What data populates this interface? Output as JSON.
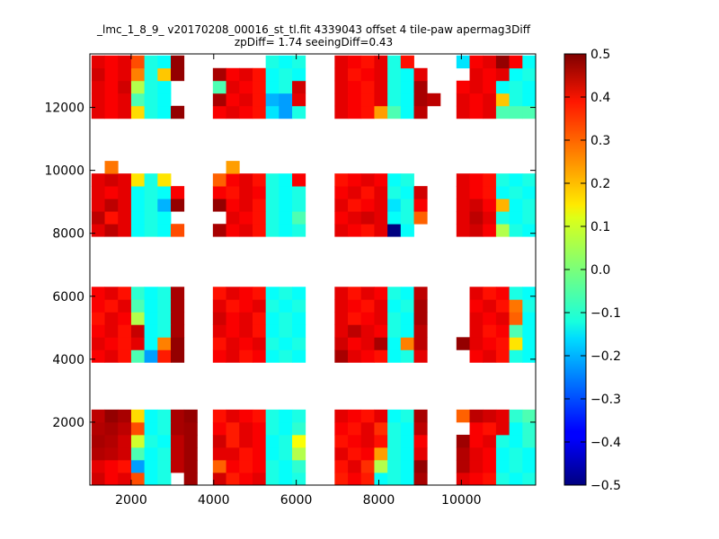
{
  "chart_data": {
    "type": "heatmap",
    "title": "_lmc_1_8_9_ v20170208_00016_st_tl.fit 4339043 offset 4 tile-paw apermag3Diff",
    "subtitle": "zpDiff= 1.74 seeingDiff=0.43",
    "xlabel": "",
    "ylabel": "",
    "xlim": [
      1000,
      11800
    ],
    "ylim": [
      0,
      13700
    ],
    "xticks": [
      "2000",
      "4000",
      "6000",
      "8000",
      "10000"
    ],
    "yticks": [
      "2000",
      "4000",
      "6000",
      "8000",
      "10000",
      "12000"
    ],
    "colorbar": {
      "colormap": "jet",
      "range": [
        -0.5,
        0.5
      ],
      "ticks": [
        "0.5",
        "0.4",
        "0.3",
        "0.2",
        "0.1",
        "0.0",
        "−0.1",
        "−0.2",
        "−0.3",
        "−0.4",
        "−0.5"
      ]
    },
    "grid": false,
    "cell_width": 320,
    "cell_height": 400,
    "column_x": [
      1040,
      1360,
      1680,
      2000,
      2320,
      2640,
      2960,
      3280,
      3980,
      4300,
      4620,
      4940,
      5260,
      5580,
      5900,
      6220,
      6930,
      7250,
      7570,
      7890,
      8210,
      8530,
      8850,
      9170,
      9880,
      10200,
      10520,
      10840,
      11160,
      11480
    ],
    "row_groups": [
      {
        "y": [
          0,
          400,
          800,
          1200,
          1600,
          2000
        ],
        "values": [
          [
            0.42,
            0.38,
            0.4,
            0.3,
            -0.12,
            -0.1,
            null,
            0.47,
            0.42,
            0.35,
            0.38,
            0.4,
            -0.1,
            -0.12,
            -0.1,
            null,
            0.35,
            0.38,
            0.35,
            -0.12,
            -0.1,
            -0.12,
            0.46,
            null,
            0.4,
            0.38,
            0.36,
            -0.1,
            -0.12,
            -0.1
          ],
          [
            0.4,
            0.38,
            0.36,
            -0.22,
            -0.12,
            -0.1,
            0.44,
            0.47,
            0.28,
            0.38,
            0.36,
            0.38,
            -0.1,
            -0.12,
            -0.08,
            null,
            0.36,
            0.4,
            0.33,
            0.05,
            -0.1,
            -0.12,
            0.48,
            null,
            0.45,
            0.4,
            0.38,
            -0.12,
            -0.1,
            -0.12
          ],
          [
            0.45,
            0.44,
            0.42,
            -0.05,
            -0.12,
            -0.1,
            0.44,
            0.47,
            0.4,
            0.4,
            0.36,
            0.38,
            -0.12,
            -0.1,
            0.05,
            null,
            0.4,
            0.36,
            0.38,
            0.22,
            -0.1,
            -0.12,
            0.4,
            null,
            0.45,
            0.4,
            0.38,
            -0.12,
            -0.1,
            -0.12
          ],
          [
            0.46,
            0.45,
            0.42,
            0.08,
            -0.1,
            -0.12,
            0.44,
            0.47,
            0.42,
            0.35,
            0.4,
            0.38,
            -0.12,
            -0.1,
            0.12,
            null,
            0.36,
            0.38,
            0.4,
            0.36,
            -0.1,
            -0.12,
            0.38,
            null,
            0.47,
            0.38,
            0.4,
            -0.1,
            -0.12,
            -0.08
          ],
          [
            0.45,
            0.46,
            0.44,
            0.3,
            -0.12,
            -0.1,
            0.46,
            0.47,
            0.38,
            0.35,
            0.4,
            0.38,
            -0.1,
            -0.12,
            -0.08,
            null,
            0.38,
            0.36,
            0.4,
            0.33,
            -0.1,
            -0.12,
            0.44,
            null,
            null,
            0.38,
            0.36,
            0.4,
            -0.12,
            -0.08
          ],
          [
            0.44,
            0.48,
            0.46,
            0.16,
            -0.12,
            -0.1,
            0.46,
            0.48,
            0.36,
            0.4,
            0.38,
            0.36,
            -0.1,
            -0.12,
            -0.1,
            null,
            0.4,
            0.38,
            0.36,
            0.4,
            -0.12,
            -0.1,
            0.46,
            null,
            0.28,
            0.44,
            0.42,
            0.4,
            -0.08,
            -0.05
          ]
        ]
      },
      {
        "y": [
          3900,
          4300,
          4700,
          5100,
          5500,
          5900
        ],
        "values": [
          [
            0.38,
            0.4,
            0.36,
            -0.05,
            -0.22,
            0.35,
            0.48,
            null,
            0.38,
            0.4,
            0.36,
            0.38,
            -0.12,
            -0.1,
            -0.12,
            null,
            0.46,
            0.4,
            0.38,
            0.36,
            -0.12,
            -0.1,
            0.4,
            null,
            null,
            0.38,
            0.4,
            0.36,
            -0.1,
            -0.12
          ],
          [
            0.4,
            0.38,
            0.36,
            0.4,
            -0.12,
            0.25,
            0.48,
            null,
            0.36,
            0.4,
            0.38,
            0.4,
            -0.1,
            -0.12,
            -0.1,
            null,
            0.42,
            0.38,
            0.4,
            0.46,
            -0.12,
            0.25,
            0.44,
            null,
            0.48,
            0.4,
            0.38,
            0.36,
            0.15,
            -0.12
          ],
          [
            0.38,
            0.4,
            0.36,
            0.43,
            -0.12,
            -0.1,
            0.46,
            null,
            0.4,
            0.38,
            0.4,
            0.36,
            -0.12,
            -0.1,
            -0.12,
            null,
            0.4,
            0.44,
            0.4,
            0.38,
            -0.1,
            -0.12,
            0.44,
            null,
            null,
            0.4,
            0.36,
            0.38,
            -0.05,
            -0.12
          ],
          [
            0.36,
            0.4,
            0.38,
            0.05,
            -0.12,
            -0.1,
            0.46,
            null,
            0.42,
            0.38,
            0.4,
            0.36,
            -0.12,
            -0.1,
            -0.12,
            null,
            0.4,
            0.36,
            0.38,
            0.4,
            -0.1,
            -0.12,
            0.46,
            null,
            null,
            0.4,
            0.38,
            0.4,
            0.28,
            -0.12
          ],
          [
            0.38,
            0.36,
            0.4,
            -0.05,
            -0.12,
            -0.1,
            0.46,
            null,
            0.4,
            0.36,
            0.38,
            0.4,
            -0.1,
            -0.12,
            -0.1,
            null,
            0.4,
            0.38,
            0.36,
            0.4,
            -0.12,
            -0.1,
            0.46,
            null,
            null,
            0.38,
            0.4,
            0.36,
            0.26,
            -0.1
          ],
          [
            0.38,
            0.4,
            0.36,
            -0.08,
            -0.12,
            -0.1,
            0.46,
            null,
            0.36,
            0.4,
            0.38,
            0.36,
            -0.12,
            -0.1,
            -0.12,
            null,
            0.4,
            0.36,
            0.4,
            0.38,
            -0.1,
            -0.12,
            0.44,
            null,
            null,
            0.4,
            0.36,
            0.38,
            -0.1,
            -0.12
          ]
        ]
      },
      {
        "y": [
          7900,
          8300,
          8700,
          9100,
          9500,
          9900
        ],
        "values": [
          [
            0.4,
            0.44,
            0.4,
            -0.12,
            -0.1,
            -0.12,
            0.3,
            null,
            0.46,
            0.38,
            0.4,
            0.36,
            -0.1,
            -0.12,
            -0.1,
            null,
            0.4,
            0.38,
            0.36,
            0.4,
            -0.5,
            -0.12,
            null,
            null,
            0.4,
            0.42,
            0.38,
            0.05,
            -0.1,
            -0.12
          ],
          [
            0.44,
            0.36,
            0.4,
            -0.12,
            -0.1,
            -0.12,
            null,
            null,
            null,
            0.4,
            0.38,
            0.36,
            -0.1,
            -0.12,
            -0.05,
            null,
            0.38,
            0.4,
            0.42,
            0.4,
            -0.12,
            -0.1,
            0.28,
            null,
            0.4,
            0.44,
            0.4,
            -0.1,
            -0.12,
            -0.1
          ],
          [
            0.4,
            0.44,
            0.4,
            -0.12,
            -0.1,
            -0.2,
            0.48,
            null,
            0.48,
            0.38,
            0.4,
            0.36,
            -0.1,
            -0.12,
            -0.1,
            null,
            0.4,
            0.36,
            0.38,
            0.4,
            -0.15,
            -0.1,
            0.38,
            null,
            0.4,
            0.42,
            0.38,
            0.2,
            -0.12,
            -0.1
          ],
          [
            0.4,
            0.38,
            0.4,
            -0.12,
            -0.1,
            -0.12,
            0.38,
            null,
            0.38,
            0.36,
            0.4,
            0.38,
            -0.1,
            -0.12,
            -0.1,
            null,
            0.38,
            0.4,
            0.36,
            0.4,
            -0.1,
            -0.12,
            0.42,
            null,
            0.4,
            0.38,
            0.36,
            -0.12,
            -0.1,
            -0.12
          ],
          [
            0.4,
            0.42,
            0.4,
            0.15,
            -0.1,
            0.15,
            null,
            null,
            0.28,
            0.38,
            0.4,
            0.36,
            -0.1,
            -0.12,
            0.38,
            null,
            0.36,
            0.38,
            0.4,
            0.38,
            -0.12,
            -0.1,
            null,
            null,
            0.4,
            0.38,
            0.36,
            -0.1,
            -0.12,
            -0.1
          ],
          [
            null,
            0.26,
            null,
            null,
            null,
            null,
            null,
            null,
            null,
            0.22,
            null,
            null,
            null,
            null,
            null,
            null,
            null,
            null,
            null,
            null,
            null,
            null,
            null,
            null,
            null,
            null,
            null,
            null,
            null,
            null
          ]
        ]
      },
      {
        "y": [
          11650,
          12050,
          12450,
          12850,
          13250
        ],
        "values": [
          [
            0.4,
            0.38,
            0.4,
            0.16,
            -0.1,
            -0.12,
            0.48,
            null,
            0.38,
            0.4,
            0.38,
            0.36,
            -0.15,
            -0.22,
            -0.1,
            null,
            0.4,
            0.38,
            0.36,
            0.22,
            -0.05,
            -0.12,
            0.44,
            null,
            0.4,
            0.38,
            0.4,
            -0.05,
            -0.05,
            -0.05
          ],
          [
            0.4,
            0.38,
            0.4,
            -0.05,
            -0.1,
            -0.12,
            null,
            null,
            0.46,
            0.38,
            0.4,
            0.36,
            -0.2,
            -0.22,
            0.4,
            null,
            0.4,
            0.38,
            0.36,
            0.4,
            -0.1,
            -0.12,
            0.46,
            0.44,
            0.4,
            0.38,
            0.4,
            0.18,
            -0.1,
            -0.12
          ],
          [
            0.4,
            0.38,
            0.42,
            0.05,
            -0.1,
            -0.12,
            null,
            null,
            -0.05,
            0.4,
            0.38,
            0.36,
            -0.12,
            -0.1,
            0.42,
            null,
            0.4,
            0.38,
            0.36,
            0.4,
            -0.1,
            -0.12,
            0.46,
            null,
            0.38,
            0.4,
            0.38,
            -0.12,
            -0.1,
            -0.12
          ],
          [
            0.42,
            0.38,
            0.4,
            0.25,
            -0.1,
            0.18,
            0.48,
            null,
            0.46,
            0.38,
            0.4,
            0.36,
            -0.12,
            -0.1,
            -0.12,
            null,
            0.4,
            0.36,
            0.38,
            0.4,
            -0.1,
            -0.12,
            0.4,
            null,
            null,
            0.4,
            0.38,
            0.4,
            -0.12,
            -0.1
          ],
          [
            0.4,
            0.38,
            0.4,
            0.3,
            -0.1,
            -0.12,
            0.48,
            null,
            null,
            null,
            null,
            null,
            -0.1,
            -0.12,
            -0.1,
            null,
            0.4,
            0.38,
            0.36,
            0.4,
            -0.1,
            0.36,
            null,
            null,
            -0.15,
            0.38,
            0.4,
            0.48,
            0.38,
            -0.12
          ]
        ]
      }
    ]
  }
}
